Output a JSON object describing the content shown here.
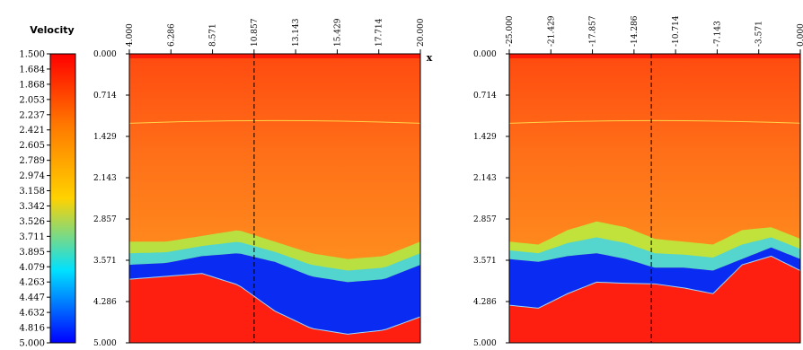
{
  "chart_data": [
    {
      "type": "colorbar",
      "title": "Velocity",
      "ticks": [
        "1.500",
        "1.684",
        "1.868",
        "2.053",
        "2.237",
        "2.421",
        "2.605",
        "2.789",
        "2.974",
        "3.158",
        "3.342",
        "3.526",
        "3.711",
        "3.895",
        "4.079",
        "4.263",
        "4.447",
        "4.632",
        "4.816",
        "5.000"
      ],
      "range": [
        1.5,
        5.0
      ],
      "colormap": [
        "#ff0000",
        "#ff7a00",
        "#ffd200",
        "#00e0ff",
        "#0000ff"
      ]
    },
    {
      "type": "heatmap",
      "xlabel": "x",
      "x_ticks": [
        "4.000",
        "6.286",
        "8.571",
        "10.857",
        "13.143",
        "15.429",
        "17.714",
        "20.000"
      ],
      "xlim": [
        4.0,
        20.0
      ],
      "y_ticks": [
        "0.000",
        "0.714",
        "1.429",
        "2.143",
        "2.857",
        "3.571",
        "4.286",
        "5.000"
      ],
      "ylim": [
        0.0,
        5.0
      ],
      "y_reversed": true,
      "dashed_line_x": 10.86,
      "reflector_depth": 1.17,
      "layers": {
        "x": [
          4.0,
          6.0,
          8.0,
          10.0,
          12.0,
          14.0,
          16.0,
          18.0,
          20.0
        ],
        "top_green": [
          3.25,
          3.25,
          3.15,
          3.05,
          3.25,
          3.45,
          3.55,
          3.5,
          3.25
        ],
        "top_blue": [
          3.65,
          3.62,
          3.5,
          3.45,
          3.6,
          3.85,
          3.95,
          3.9,
          3.65
        ],
        "top_red": [
          3.9,
          3.85,
          3.8,
          4.0,
          4.45,
          4.75,
          4.85,
          4.78,
          4.55
        ],
        "green_color": "#b8e040",
        "blue_color": "#0a2cf2",
        "red_color": "#ff1f10"
      }
    },
    {
      "type": "heatmap",
      "x_ticks": [
        "-25.000",
        "-21.429",
        "-17.857",
        "-14.286",
        "-10.714",
        "-7.143",
        "-3.571",
        "0.000"
      ],
      "xlim": [
        -25.0,
        0.0
      ],
      "y_ticks": [
        "0.000",
        "0.714",
        "1.429",
        "2.143",
        "2.857",
        "3.571",
        "4.286",
        "5.000"
      ],
      "ylim": [
        0.0,
        5.0
      ],
      "y_reversed": true,
      "dashed_line_x": -12.8,
      "reflector_depth": 1.17,
      "layers": {
        "x": [
          -25.0,
          -22.5,
          -20.0,
          -17.5,
          -15.0,
          -12.5,
          -10.0,
          -7.5,
          -5.0,
          -2.5,
          0.0
        ],
        "top_green": [
          3.25,
          3.3,
          3.05,
          2.9,
          3.0,
          3.2,
          3.25,
          3.3,
          3.05,
          3.0,
          3.2
        ],
        "top_blue": [
          3.55,
          3.6,
          3.5,
          3.45,
          3.55,
          3.7,
          3.7,
          3.75,
          3.55,
          3.35,
          3.55
        ],
        "top_red": [
          4.35,
          4.4,
          4.15,
          3.95,
          3.97,
          3.98,
          4.05,
          4.15,
          3.65,
          3.5,
          3.75
        ],
        "green_color": "#c0e23a",
        "blue_color": "#0a2cf2",
        "red_color": "#ff1f10"
      }
    }
  ]
}
